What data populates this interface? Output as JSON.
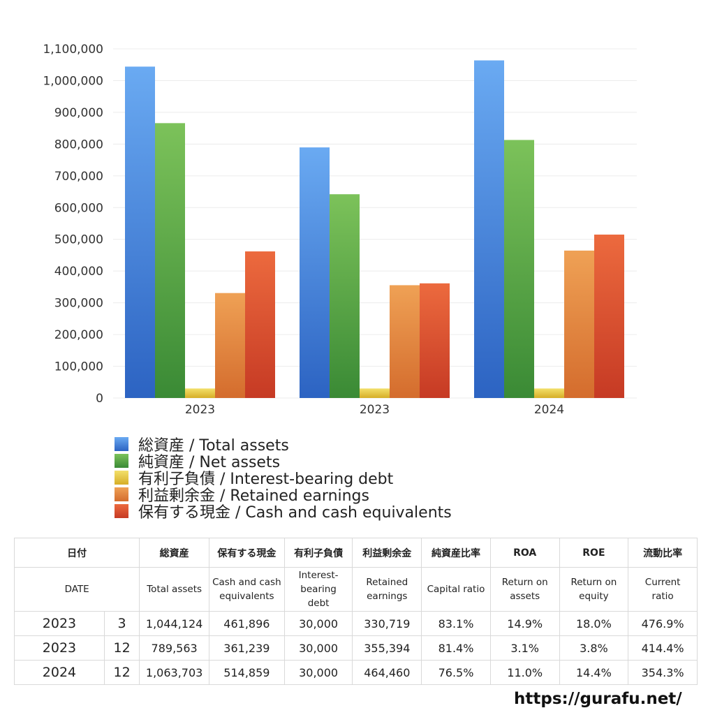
{
  "chart_data": {
    "type": "bar",
    "categories": [
      "2023",
      "2023",
      "2024"
    ],
    "yticks": [
      "0",
      "100,000",
      "200,000",
      "300,000",
      "400,000",
      "500,000",
      "600,000",
      "700,000",
      "800,000",
      "900,000",
      "1,000,000",
      "1,100,000"
    ],
    "ylim": [
      0,
      1100000
    ],
    "grid": true,
    "legend_position": "bottom-left",
    "series": [
      {
        "name": "総資産 / Total assets",
        "color": "#3f86e0",
        "values": [
          1044124,
          789563,
          1063703
        ]
      },
      {
        "name": "純資産 / Net assets",
        "color": "#4f9f3f",
        "values": [
          866000,
          642000,
          813000
        ]
      },
      {
        "name": "有利子負債 / Interest-bearing debt",
        "color": "#e8c93a",
        "values": [
          30000,
          30000,
          30000
        ]
      },
      {
        "name": "利益剰余金 / Retained earnings",
        "color": "#e2843a",
        "values": [
          330719,
          355394,
          464460
        ]
      },
      {
        "name": "保有する現金 /  Cash and cash equivalents",
        "color": "#d94a2c",
        "values": [
          461896,
          361239,
          514859
        ]
      }
    ]
  },
  "table": {
    "headers_jp": [
      "日付",
      "総資産",
      "保有する現金",
      "有利子負債",
      "利益剰余金",
      "純資産比率",
      "ROA",
      "ROE",
      "流動比率"
    ],
    "headers_en": [
      "DATE",
      "Total assets",
      "Cash and cash equivalents",
      "Interest-bearing debt",
      "Retained earnings",
      "Capital ratio",
      "Return on assets",
      "Return on equity",
      "Current ratio"
    ],
    "rows": [
      {
        "year": "2023",
        "month": "3",
        "total_assets": "1,044,124",
        "cash": "461,896",
        "debt": "30,000",
        "retained": "330,719",
        "capital_ratio": "83.1%",
        "roa": "14.9%",
        "roe": "18.0%",
        "current_ratio": "476.9%"
      },
      {
        "year": "2023",
        "month": "12",
        "total_assets": "789,563",
        "cash": "361,239",
        "debt": "30,000",
        "retained": "355,394",
        "capital_ratio": "81.4%",
        "roa": "3.1%",
        "roe": "3.8%",
        "current_ratio": "414.4%"
      },
      {
        "year": "2024",
        "month": "12",
        "total_assets": "1,063,703",
        "cash": "514,859",
        "debt": "30,000",
        "retained": "464,460",
        "capital_ratio": "76.5%",
        "roa": "11.0%",
        "roe": "14.4%",
        "current_ratio": "354.3%"
      }
    ]
  },
  "site": "https://gurafu.net/"
}
